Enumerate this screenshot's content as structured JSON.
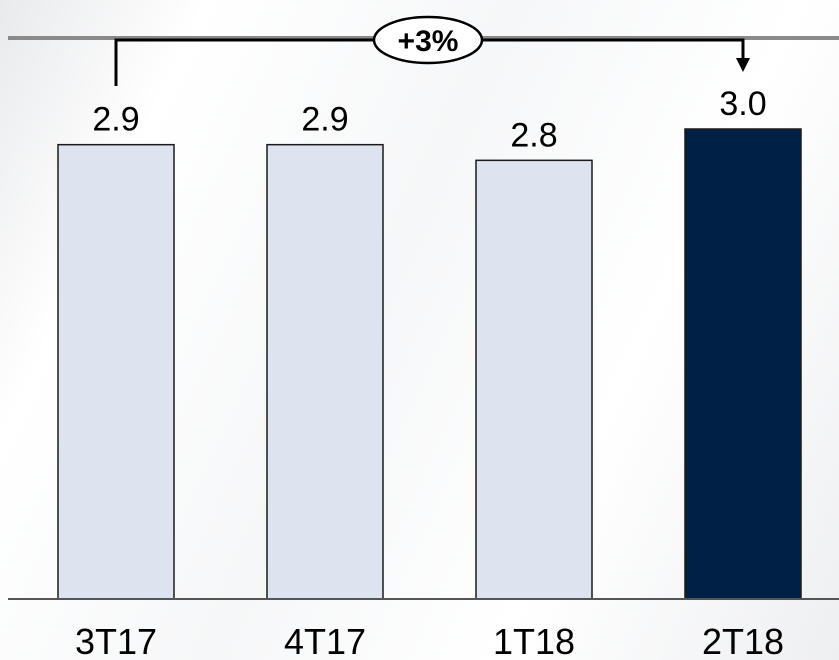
{
  "chart_data": {
    "type": "bar",
    "categories": [
      "3T17",
      "4T17",
      "1T18",
      "2T18"
    ],
    "values": [
      2.9,
      2.9,
      2.8,
      3.0
    ],
    "value_labels": [
      "2.9",
      "2.9",
      "2.8",
      "3.0"
    ],
    "ylim": [
      0,
      3.0
    ],
    "grid": false,
    "bar_colors": [
      "#dde4ef",
      "#dde4ef",
      "#dde4ef",
      "#002145"
    ],
    "annotation": {
      "text": "+3%",
      "from_category": "3T17",
      "to_category": "2T18"
    }
  },
  "colors": {
    "bar_light": "#dde4ef",
    "bar_highlight": "#002145",
    "baseline": "#555555",
    "top_rule": "#8a8a8a"
  }
}
